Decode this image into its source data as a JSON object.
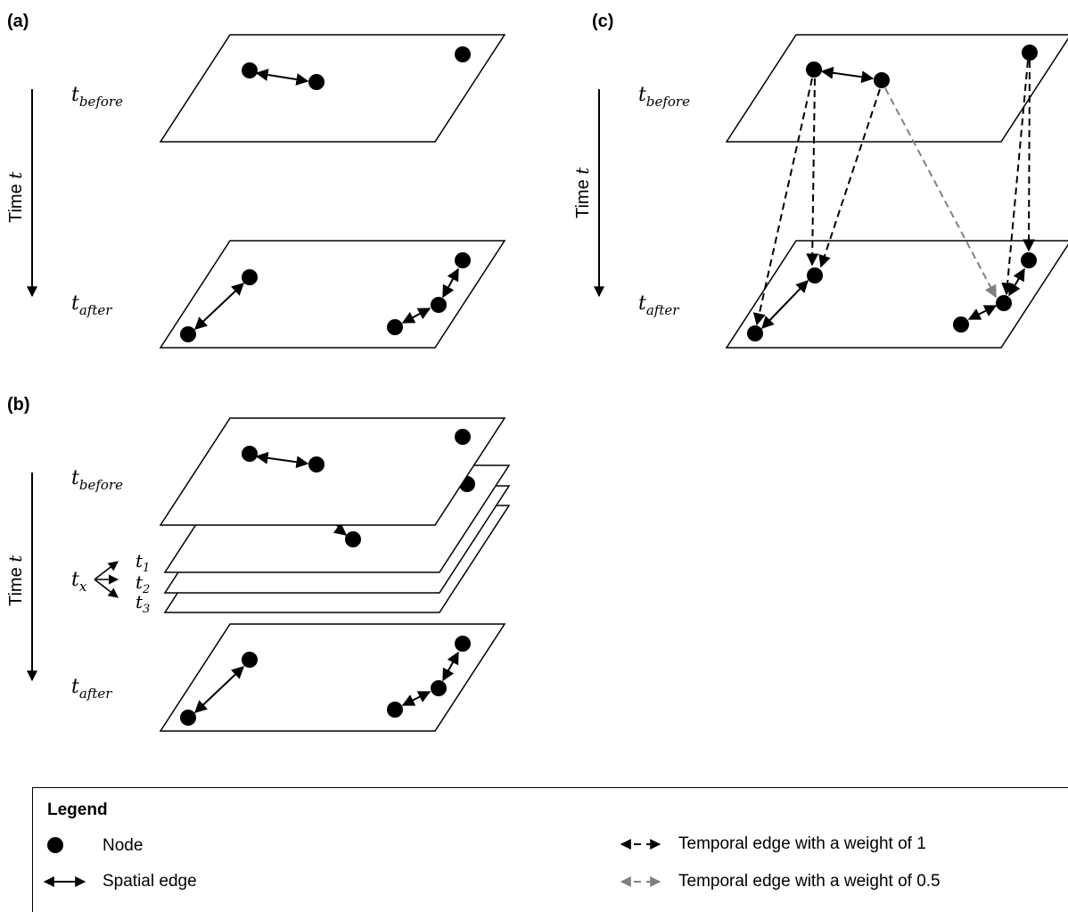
{
  "panels": {
    "a": {
      "label": "(a)",
      "time_axis": "Time",
      "time_var": "t",
      "t_before": {
        "base": "t",
        "sub": "before"
      },
      "t_after": {
        "base": "t",
        "sub": "after"
      }
    },
    "b": {
      "label": "(b)",
      "time_axis": "Time",
      "time_var": "t",
      "t_before": {
        "base": "t",
        "sub": "before"
      },
      "t_after": {
        "base": "t",
        "sub": "after"
      },
      "t_x": {
        "base": "t",
        "sub": "x"
      },
      "t_1": {
        "base": "t",
        "sub": "1"
      },
      "t_2": {
        "base": "t",
        "sub": "2"
      },
      "t_3": {
        "base": "t",
        "sub": "3"
      }
    },
    "c": {
      "label": "(c)",
      "time_axis": "Time",
      "time_var": "t",
      "t_before": {
        "base": "t",
        "sub": "before"
      },
      "t_after": {
        "base": "t",
        "sub": "after"
      }
    }
  },
  "legend": {
    "title": "Legend",
    "node": "Node",
    "spatial_edge": "Spatial edge",
    "temporal_edge_1": "Temporal edge with a weight of 1",
    "temporal_edge_05": "Temporal edge with a weight of 0.5"
  },
  "colors": {
    "ink": "#000000",
    "half_weight_edge": "#808080"
  }
}
